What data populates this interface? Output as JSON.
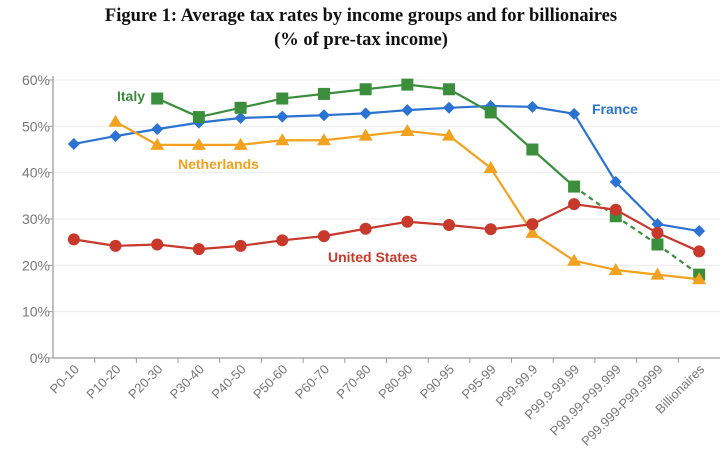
{
  "chart_data": {
    "type": "line",
    "title": "Figure 1: Average tax rates by income groups and for billionaires",
    "subtitle": "(% of pre-tax income)",
    "xlabel": "",
    "ylabel": "",
    "ylim": [
      0,
      60
    ],
    "yticks": [
      0,
      10,
      20,
      30,
      40,
      50,
      60
    ],
    "ytick_labels": [
      "0%",
      "10%",
      "20%",
      "30%",
      "40%",
      "50%",
      "60%"
    ],
    "grid": true,
    "legend": "inline labels",
    "categories": [
      "P0-10",
      "P10-20",
      "P20-30",
      "P30-40",
      "P40-50",
      "P50-60",
      "P60-70",
      "P70-80",
      "P80-90",
      "P90-95",
      "P95-99",
      "P99-99.9",
      "P99.9-99.99",
      "P99.99-P99.999",
      "P99.999-P99.9999",
      "Billionaires"
    ],
    "series": [
      {
        "name": "France",
        "color": "#2a73d2",
        "marker": "diamond",
        "values": [
          46.2,
          47.9,
          49.4,
          50.8,
          51.8,
          52.1,
          52.4,
          52.8,
          53.5,
          54.0,
          54.4,
          54.2,
          52.7,
          38.0,
          28.9,
          27.4
        ],
        "dashed_from_index": null
      },
      {
        "name": "Italy",
        "color": "#3a8e3c",
        "marker": "square",
        "values": [
          null,
          null,
          56.0,
          52.0,
          54.0,
          56.0,
          57.0,
          58.0,
          59.0,
          58.0,
          53.0,
          45.0,
          37.0,
          30.6,
          24.5,
          18.0
        ],
        "dashed_from_index": 12
      },
      {
        "name": "Netherlands",
        "color": "#f2a21e",
        "marker": "triangle",
        "values": [
          null,
          51.0,
          46.0,
          46.0,
          46.0,
          47.0,
          47.0,
          48.0,
          49.0,
          48.0,
          41.0,
          27.0,
          21.0,
          19.0,
          18.0,
          17.0
        ],
        "dashed_from_index": null
      },
      {
        "name": "United States",
        "color": "#c8392b",
        "marker": "circle",
        "values": [
          25.6,
          24.2,
          24.5,
          23.5,
          24.2,
          25.4,
          26.3,
          27.9,
          29.4,
          28.7,
          27.8,
          28.9,
          33.2,
          32.0,
          27.0,
          23.0
        ],
        "dashed_from_index": null
      }
    ]
  }
}
